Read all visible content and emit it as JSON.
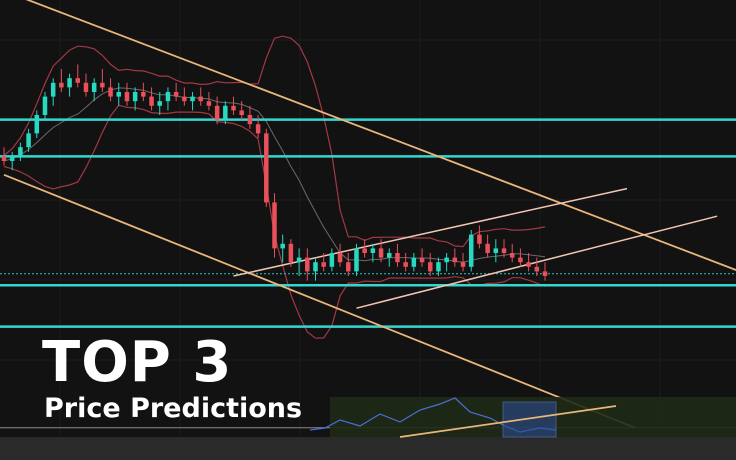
{
  "overlay": {
    "title": "TOP 3",
    "subtitle": "Price Predictions"
  },
  "colors": {
    "background": "#121212",
    "grid": "#1c1c1c",
    "up_candle": "#26d9c0",
    "down_candle": "#e8505b",
    "bollinger_outer": "#a23844",
    "bollinger_mid": "#6a6a6a",
    "horizontal_level": "#36d6d0",
    "trendline": "#e8b67a",
    "channel": "#f2c6b3",
    "current_price_line": "#2ec7c0",
    "bottom_band": "#1f2a17",
    "indicator_line": "#4a6fd6",
    "indicator_box": "#2c4a8f"
  },
  "chart_data": {
    "type": "candlestick",
    "title": "",
    "xlabel": "",
    "ylabel": "",
    "ylim": [
      0,
      100
    ],
    "grid": true,
    "candles": [
      {
        "o": 66,
        "h": 68,
        "l": 64,
        "c": 65
      },
      {
        "o": 65,
        "h": 67,
        "l": 63,
        "c": 66
      },
      {
        "o": 66,
        "h": 69,
        "l": 65,
        "c": 68
      },
      {
        "o": 68,
        "h": 72,
        "l": 67,
        "c": 71
      },
      {
        "o": 71,
        "h": 76,
        "l": 70,
        "c": 75
      },
      {
        "o": 75,
        "h": 80,
        "l": 74,
        "c": 79
      },
      {
        "o": 79,
        "h": 83,
        "l": 77,
        "c": 82
      },
      {
        "o": 82,
        "h": 85,
        "l": 80,
        "c": 81
      },
      {
        "o": 81,
        "h": 84,
        "l": 79,
        "c": 83
      },
      {
        "o": 83,
        "h": 86,
        "l": 81,
        "c": 82
      },
      {
        "o": 82,
        "h": 84,
        "l": 79,
        "c": 80
      },
      {
        "o": 80,
        "h": 83,
        "l": 78,
        "c": 82
      },
      {
        "o": 82,
        "h": 85,
        "l": 80,
        "c": 81
      },
      {
        "o": 81,
        "h": 83,
        "l": 78,
        "c": 79
      },
      {
        "o": 79,
        "h": 82,
        "l": 77,
        "c": 80
      },
      {
        "o": 80,
        "h": 82,
        "l": 77,
        "c": 78
      },
      {
        "o": 78,
        "h": 81,
        "l": 76,
        "c": 80
      },
      {
        "o": 80,
        "h": 82,
        "l": 78,
        "c": 79
      },
      {
        "o": 79,
        "h": 81,
        "l": 76,
        "c": 77
      },
      {
        "o": 77,
        "h": 80,
        "l": 75,
        "c": 78
      },
      {
        "o": 78,
        "h": 81,
        "l": 76,
        "c": 80
      },
      {
        "o": 80,
        "h": 82,
        "l": 78,
        "c": 79
      },
      {
        "o": 79,
        "h": 81,
        "l": 77,
        "c": 78
      },
      {
        "o": 78,
        "h": 80,
        "l": 76,
        "c": 79
      },
      {
        "o": 79,
        "h": 81,
        "l": 77,
        "c": 78
      },
      {
        "o": 78,
        "h": 80,
        "l": 76,
        "c": 77
      },
      {
        "o": 77,
        "h": 79,
        "l": 73,
        "c": 74
      },
      {
        "o": 74,
        "h": 78,
        "l": 73,
        "c": 77
      },
      {
        "o": 77,
        "h": 79,
        "l": 75,
        "c": 76
      },
      {
        "o": 76,
        "h": 78,
        "l": 74,
        "c": 75
      },
      {
        "o": 75,
        "h": 77,
        "l": 72,
        "c": 73
      },
      {
        "o": 73,
        "h": 75,
        "l": 70,
        "c": 71
      },
      {
        "o": 71,
        "h": 72,
        "l": 55,
        "c": 56
      },
      {
        "o": 56,
        "h": 58,
        "l": 44,
        "c": 46
      },
      {
        "o": 46,
        "h": 49,
        "l": 43,
        "c": 47
      },
      {
        "o": 47,
        "h": 48,
        "l": 42,
        "c": 43
      },
      {
        "o": 43,
        "h": 46,
        "l": 40,
        "c": 44
      },
      {
        "o": 44,
        "h": 46,
        "l": 39,
        "c": 41
      },
      {
        "o": 41,
        "h": 44,
        "l": 39,
        "c": 43
      },
      {
        "o": 43,
        "h": 45,
        "l": 41,
        "c": 42
      },
      {
        "o": 42,
        "h": 46,
        "l": 41,
        "c": 45
      },
      {
        "o": 45,
        "h": 47,
        "l": 42,
        "c": 43
      },
      {
        "o": 43,
        "h": 45,
        "l": 40,
        "c": 41
      },
      {
        "o": 41,
        "h": 47,
        "l": 40,
        "c": 46
      },
      {
        "o": 46,
        "h": 48,
        "l": 44,
        "c": 45
      },
      {
        "o": 45,
        "h": 47,
        "l": 43,
        "c": 46
      },
      {
        "o": 46,
        "h": 48,
        "l": 43,
        "c": 44
      },
      {
        "o": 44,
        "h": 46,
        "l": 42,
        "c": 45
      },
      {
        "o": 45,
        "h": 47,
        "l": 42,
        "c": 43
      },
      {
        "o": 43,
        "h": 45,
        "l": 41,
        "c": 42
      },
      {
        "o": 42,
        "h": 45,
        "l": 41,
        "c": 44
      },
      {
        "o": 44,
        "h": 46,
        "l": 42,
        "c": 43
      },
      {
        "o": 43,
        "h": 45,
        "l": 40,
        "c": 41
      },
      {
        "o": 41,
        "h": 44,
        "l": 40,
        "c": 43
      },
      {
        "o": 43,
        "h": 45,
        "l": 41,
        "c": 44
      },
      {
        "o": 44,
        "h": 46,
        "l": 42,
        "c": 43
      },
      {
        "o": 43,
        "h": 45,
        "l": 41,
        "c": 42
      },
      {
        "o": 42,
        "h": 50,
        "l": 41,
        "c": 49
      },
      {
        "o": 49,
        "h": 51,
        "l": 46,
        "c": 47
      },
      {
        "o": 47,
        "h": 49,
        "l": 44,
        "c": 45
      },
      {
        "o": 45,
        "h": 48,
        "l": 43,
        "c": 46
      },
      {
        "o": 46,
        "h": 48,
        "l": 44,
        "c": 45
      },
      {
        "o": 45,
        "h": 47,
        "l": 43,
        "c": 44
      },
      {
        "o": 44,
        "h": 46,
        "l": 42,
        "c": 43
      },
      {
        "o": 43,
        "h": 45,
        "l": 41,
        "c": 42
      },
      {
        "o": 42,
        "h": 44,
        "l": 40,
        "c": 41
      },
      {
        "o": 41,
        "h": 43,
        "l": 39,
        "c": 40
      }
    ],
    "current_price": 40.5,
    "horizontal_levels": [
      74,
      66,
      38,
      29
    ],
    "bottom_reference_level": 7,
    "trendlines": [
      {
        "name": "",
        "x0": 0,
        "y0": 102,
        "x1": 103,
        "y1": 32
      },
      {
        "name": "",
        "x0": 0,
        "y0": 62,
        "x1": 77,
        "y1": 7
      }
    ],
    "channel": [
      {
        "x0": 28,
        "y0": 40,
        "x1": 76,
        "y1": 59
      },
      {
        "x0": 43,
        "y0": 33,
        "x1": 87,
        "y1": 53
      }
    ]
  }
}
